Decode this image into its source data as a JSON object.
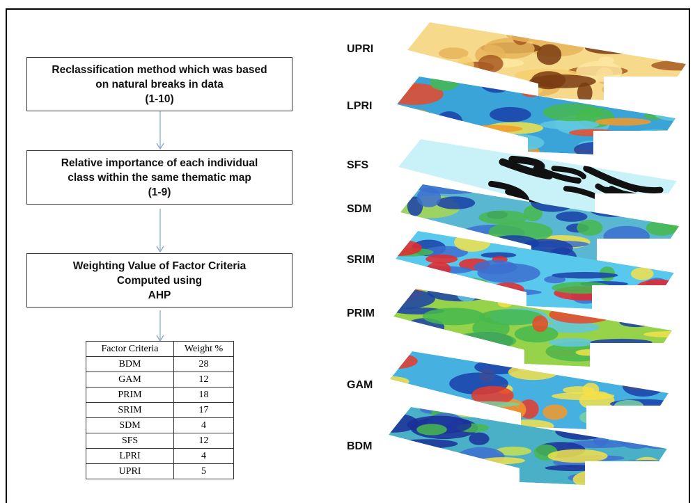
{
  "flowchart": {
    "steps": [
      {
        "lines": [
          "Reclassification method which was based",
          "on natural breaks in data",
          "(1-10)"
        ]
      },
      {
        "lines": [
          "Relative importance of each individual",
          "class within the same thematic map",
          "(1-9)"
        ]
      },
      {
        "lines": [
          "Weighting Value of Factor Criteria",
          "Computed using",
          "AHP"
        ]
      }
    ]
  },
  "table": {
    "header": [
      "Factor Criteria",
      "Weight  %"
    ],
    "rows": [
      [
        "BDM",
        28
      ],
      [
        "GAM",
        12
      ],
      [
        "PRIM",
        18
      ],
      [
        "SRIM",
        17
      ],
      [
        "SDM",
        4
      ],
      [
        "SFS",
        12
      ],
      [
        "LPRI",
        4
      ],
      [
        "UPRI",
        5
      ]
    ]
  },
  "layers": [
    {
      "label": "UPRI"
    },
    {
      "label": "LPRI"
    },
    {
      "label": "SFS"
    },
    {
      "label": "SDM"
    },
    {
      "label": "SRIM"
    },
    {
      "label": "PRIM"
    },
    {
      "label": "GAM"
    },
    {
      "label": "BDM"
    }
  ]
}
